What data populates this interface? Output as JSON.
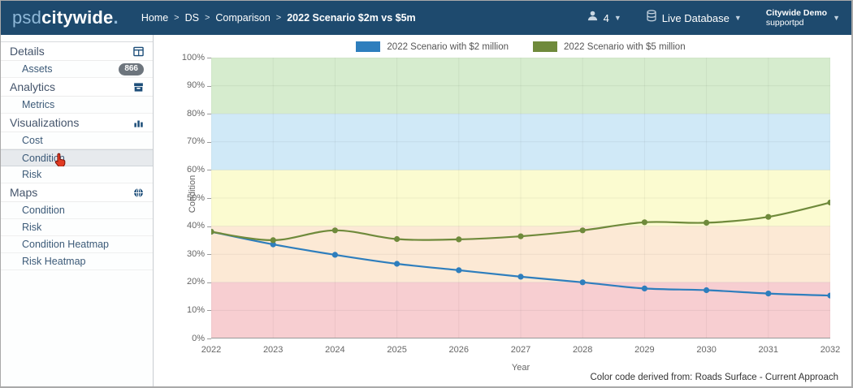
{
  "navbar": {
    "logo": {
      "prefix": "psd",
      "suffix": "citywide",
      "dot": "."
    },
    "breadcrumb": {
      "items": [
        "Home",
        "DS",
        "Comparison"
      ],
      "separator": ">",
      "current": "2022 Scenario $2m vs $5m"
    },
    "user_count": "4",
    "database_label": "Live Database",
    "account": {
      "line1": "Citywide Demo",
      "line2": "supportpd"
    }
  },
  "sidebar": {
    "sections": [
      {
        "label": "Details",
        "icon": "table-icon",
        "items": [
          {
            "label": "Assets",
            "badge": "866"
          }
        ]
      },
      {
        "label": "Analytics",
        "icon": "archive-icon",
        "items": [
          {
            "label": "Metrics"
          }
        ]
      },
      {
        "label": "Visualizations",
        "icon": "bar-chart-icon",
        "items": [
          {
            "label": "Cost"
          },
          {
            "label": "Condition",
            "selected": true
          },
          {
            "label": "Risk"
          }
        ]
      },
      {
        "label": "Maps",
        "icon": "globe-icon",
        "items": [
          {
            "label": "Condition"
          },
          {
            "label": "Risk"
          },
          {
            "label": "Condition Heatmap"
          },
          {
            "label": "Risk Heatmap"
          }
        ]
      }
    ]
  },
  "chart_data": {
    "type": "line",
    "x": [
      2022,
      2023,
      2024,
      2025,
      2026,
      2027,
      2028,
      2029,
      2030,
      2031,
      2032
    ],
    "series": [
      {
        "name": "2022 Scenario with $2 million",
        "color": "#2e7ebd",
        "values": [
          38,
          33.5,
          29.8,
          26.6,
          24.3,
          22,
          20,
          17.8,
          17.2,
          16,
          15.3
        ]
      },
      {
        "name": "2022 Scenario with $5 million",
        "color": "#6f8a3b",
        "values": [
          38,
          35,
          38.5,
          35.4,
          35.3,
          36.4,
          38.5,
          41.4,
          41.2,
          43.3,
          48.4
        ]
      }
    ],
    "xlabel": "Year",
    "ylabel": "Condition",
    "ylim": [
      0,
      100
    ],
    "ytick_step": 10,
    "ytick_format": "percent",
    "grid": true,
    "legend_position": "top",
    "bands": [
      {
        "from": 80,
        "to": 100,
        "color": "#d6ecce"
      },
      {
        "from": 60,
        "to": 80,
        "color": "#d0e9f7"
      },
      {
        "from": 40,
        "to": 60,
        "color": "#fbfbd0"
      },
      {
        "from": 20,
        "to": 40,
        "color": "#fce9d5"
      },
      {
        "from": 0,
        "to": 20,
        "color": "#f7ced1"
      }
    ]
  },
  "footer_note": "Color code derived from: Roads Surface - Current Approach"
}
